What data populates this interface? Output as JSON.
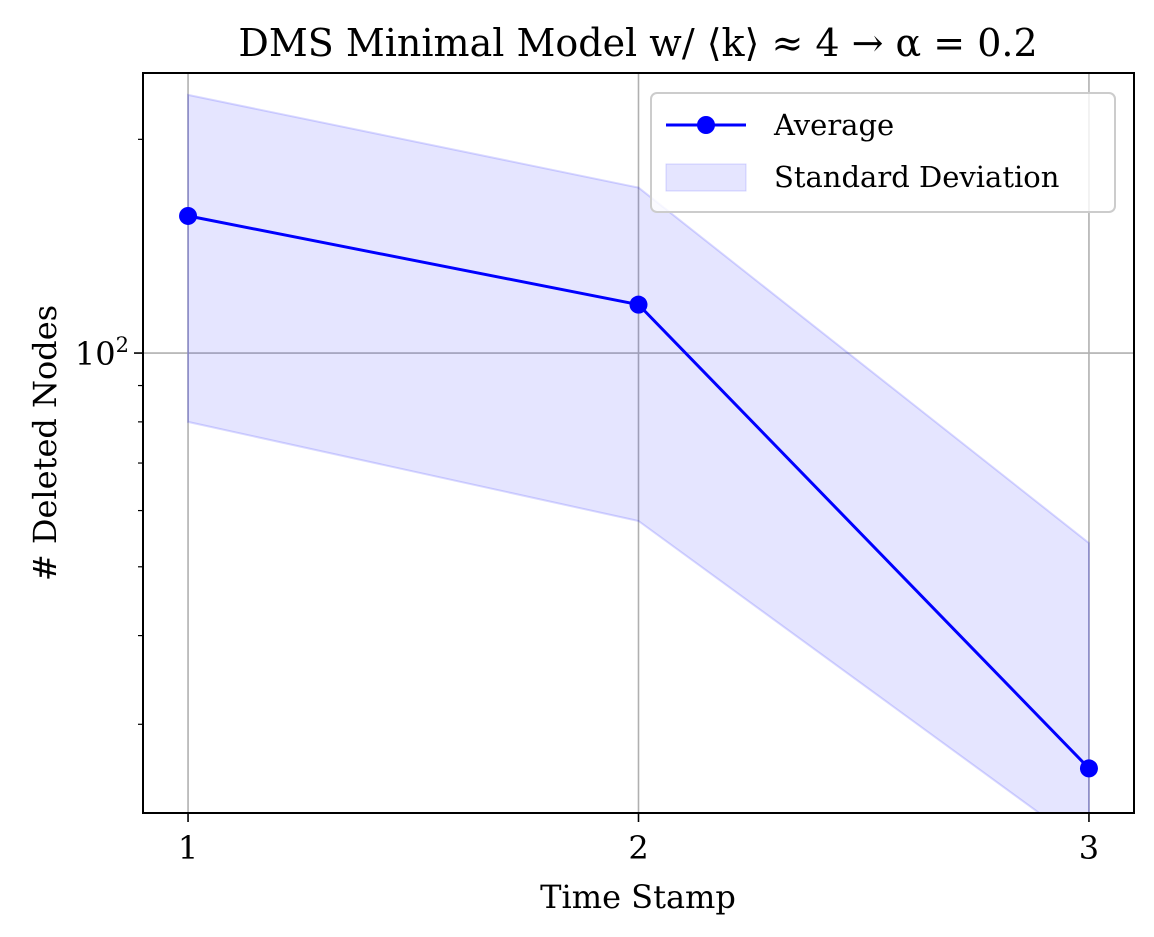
{
  "chart_data": {
    "type": "line",
    "title": "DMS Minimal Model w/ ⟨k⟩ ≈ 4 → α = 0.2",
    "xlabel": "Time Stamp",
    "ylabel": "# Deleted Nodes",
    "x": [
      1,
      2,
      3
    ],
    "x_ticks": [
      "1",
      "2",
      "3"
    ],
    "xlim": [
      0.9,
      3.1
    ],
    "yscale": "log",
    "ylim": [
      22.5,
      248
    ],
    "y_major_tick": {
      "value": 100,
      "label_base": "10",
      "label_exp": "2"
    },
    "grid": true,
    "legend_position": "upper-right",
    "series": [
      {
        "name": "Average",
        "kind": "line-marker",
        "color": "#0000ff",
        "values": [
          156,
          117,
          26
        ]
      },
      {
        "name": "Standard Deviation",
        "kind": "band",
        "color": "#0000ff",
        "fill_opacity": 0.1,
        "lower": [
          80,
          58,
          20
        ],
        "upper": [
          231,
          171,
          54
        ]
      }
    ]
  }
}
